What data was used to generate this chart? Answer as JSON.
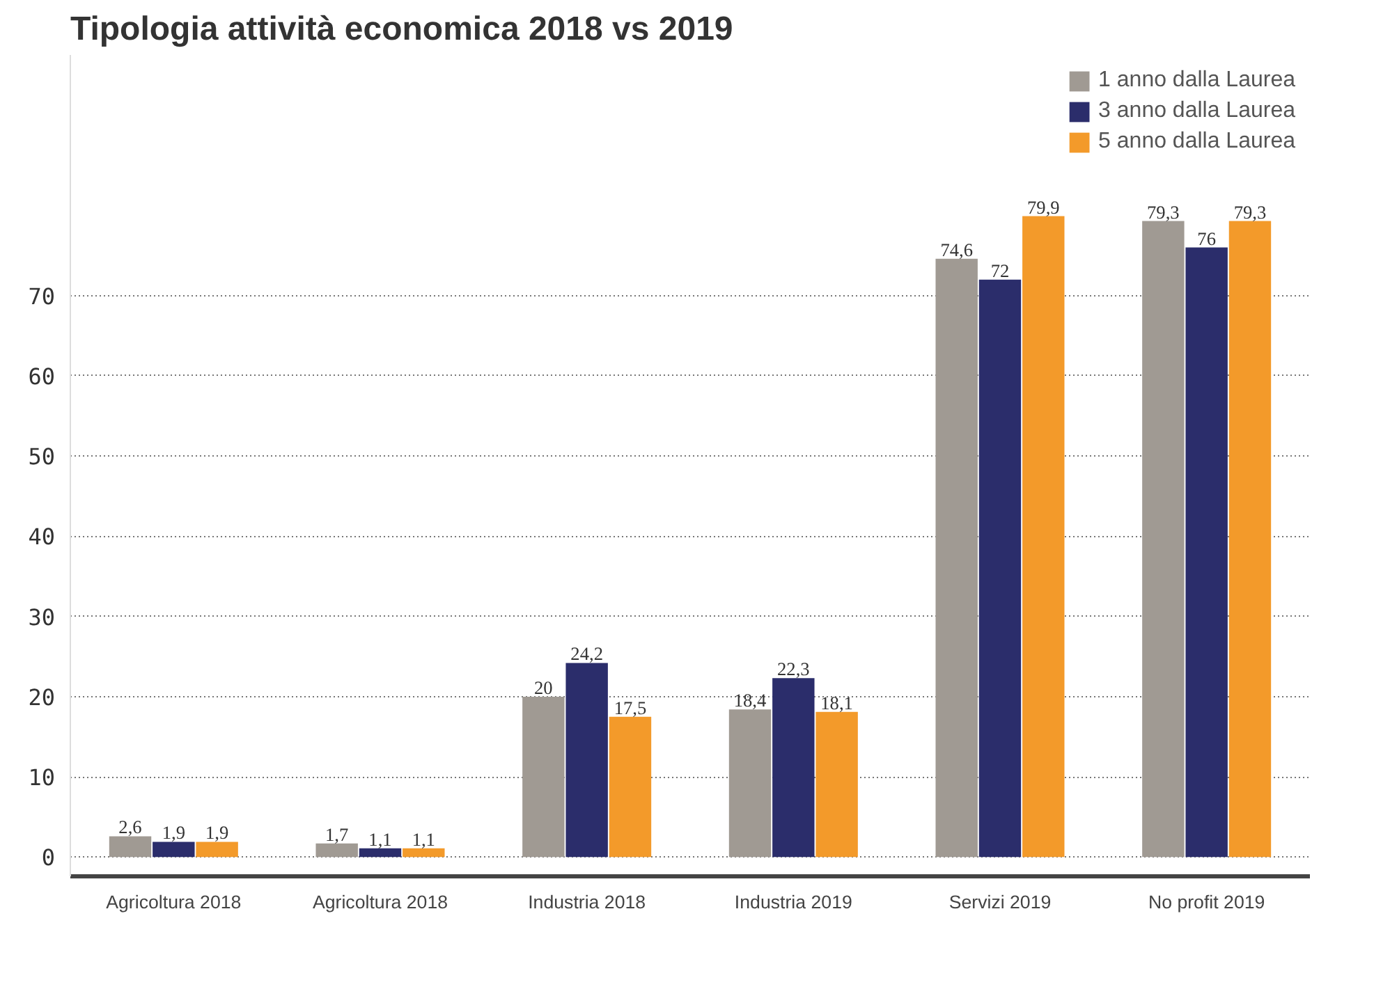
{
  "chart_data": {
    "type": "bar",
    "title": "Tipologia attività economica 2018 vs 2019",
    "categories": [
      "Agricoltura 2018",
      "Agricoltura 2018",
      "Industria 2018",
      "Industria 2019",
      "Servizi 2019",
      "No profit 2019"
    ],
    "series": [
      {
        "name": "1 anno dalla Laurea",
        "color": "#a09a93",
        "values": [
          2.6,
          1.7,
          20,
          18.4,
          74.6,
          79.3
        ],
        "value_labels": [
          "2,6",
          "1,7",
          "20",
          "18,4",
          "74,6",
          "79,3"
        ]
      },
      {
        "name": "3 anno dalla Laurea",
        "color": "#2b2d6b",
        "values": [
          1.9,
          1.1,
          24.2,
          22.3,
          72,
          76
        ],
        "value_labels": [
          "1,9",
          "1,1",
          "24,2",
          "22,3",
          "72",
          "76"
        ]
      },
      {
        "name": "5 anno dalla Laurea",
        "color": "#f39a2a",
        "values": [
          1.9,
          1.1,
          17.5,
          18.1,
          79.9,
          79.3
        ],
        "value_labels": [
          "1,9",
          "1,1",
          "17,5",
          "18,1",
          "79,9",
          "79,3"
        ]
      }
    ],
    "ylim": [
      -2.4,
      100
    ],
    "yticks": [
      0,
      10,
      20,
      30,
      40,
      50,
      60,
      70
    ],
    "grid": "y",
    "legend": "top right"
  }
}
